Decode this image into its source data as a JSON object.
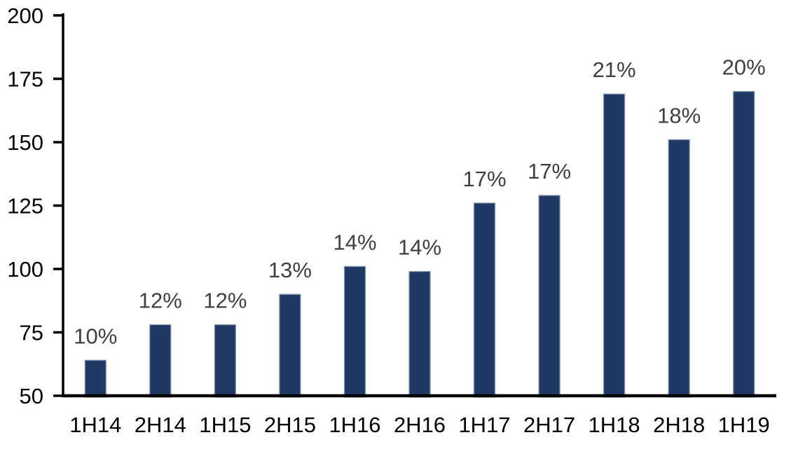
{
  "chart_data": {
    "type": "bar",
    "title": "",
    "xlabel": "",
    "ylabel": "",
    "categories": [
      "1H14",
      "2H14",
      "1H15",
      "2H15",
      "1H16",
      "2H16",
      "1H17",
      "2H17",
      "1H18",
      "2H18",
      "1H19"
    ],
    "values": [
      64,
      78,
      78,
      90,
      101,
      99,
      126,
      129,
      169,
      151,
      170
    ],
    "data_labels": [
      "10%",
      "12%",
      "12%",
      "13%",
      "14%",
      "14%",
      "17%",
      "17%",
      "21%",
      "18%",
      "20%"
    ],
    "ylim": [
      50,
      200
    ],
    "yticks": [
      50,
      75,
      100,
      125,
      150,
      175,
      200
    ],
    "grid": false,
    "legend": false,
    "colors": {
      "bar_fill": "#1F3864",
      "bar_border": "#8496B0",
      "axis": "#000000",
      "tick_label": "#000000",
      "data_label": "#404040",
      "background": "#FFFFFF"
    }
  }
}
